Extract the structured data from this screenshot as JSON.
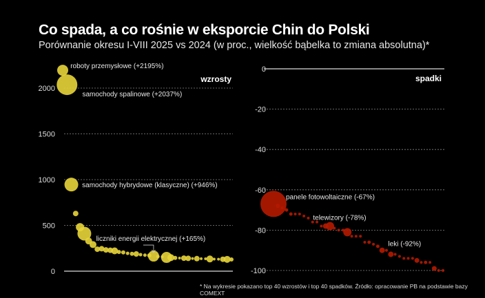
{
  "title": "Co spada, a co rośnie w eksporcie Chin do Polski",
  "subtitle": "Porównanie okresu I-VIII 2025 vs 2024 (w proc., wielkość bąbelka to zmiana absolutna)*",
  "footnote": "* Na wykresie pokazano top 40 wzrostów i top 40 spadków. Źródło: opracowanie PB na podstawie bazy COMEXT",
  "chart_data": [
    {
      "type": "scatter",
      "panel_label": "wzrosty",
      "color": "#e8d53a",
      "ylim": [
        0,
        2200
      ],
      "yticks": [
        "0",
        "500",
        "1000",
        "1500",
        "2000"
      ],
      "ytick_values": [
        0,
        500,
        1000,
        1500,
        2000
      ],
      "grid": true,
      "values": [
        2195,
        2037,
        946,
        630,
        480,
        410,
        330,
        290,
        240,
        245,
        232,
        228,
        222,
        210,
        205,
        195,
        190,
        188,
        180,
        175,
        172,
        165,
        160,
        158,
        150,
        148,
        145,
        143,
        142,
        140,
        138,
        137,
        136,
        135,
        133,
        132,
        131,
        130,
        129,
        128
      ],
      "sizes": [
        8,
        15,
        10,
        4,
        6,
        10,
        5,
        5,
        4,
        4,
        4,
        4,
        5,
        3,
        3,
        2.5,
        3,
        4,
        2.5,
        2.5,
        3,
        8,
        2.5,
        2,
        8,
        5,
        3,
        2,
        4,
        4,
        2,
        4,
        2,
        2,
        5,
        2,
        2,
        4,
        5,
        3
      ],
      "annotations": [
        {
          "index": 0,
          "text": "roboty przemysłowe (+2195%)"
        },
        {
          "index": 1,
          "text": "samochody spalinowe (+2037%)"
        },
        {
          "index": 2,
          "text": "samochody hybrydowe (klasyczne) (+946%)"
        },
        {
          "index": 21,
          "text": "liczniki energii elektrycznej (+165%)"
        }
      ]
    },
    {
      "type": "scatter",
      "panel_label": "spadki",
      "color": "#b51a00",
      "ylim": [
        -100,
        0
      ],
      "yticks": [
        "0",
        "-20",
        "-40",
        "-60",
        "-80",
        "-100"
      ],
      "ytick_values": [
        0,
        -20,
        -40,
        -60,
        -80,
        -100
      ],
      "grid": true,
      "values": [
        -67,
        -68,
        -69,
        -70,
        -72,
        -72,
        -72,
        -73,
        -74,
        -76,
        -76,
        -78,
        -78,
        -78,
        -79,
        -80,
        -80,
        -81,
        -83,
        -83,
        -83,
        -86,
        -86,
        -87,
        -88,
        -90,
        -90,
        -92,
        -92,
        -93,
        -94,
        -94,
        -94,
        -95,
        -96,
        -96,
        -96,
        -99,
        -100,
        -100
      ],
      "sizes": [
        19,
        3,
        2,
        2.5,
        2.5,
        2,
        2,
        2,
        2,
        2,
        2,
        2,
        4,
        6,
        2,
        2,
        2,
        6,
        2,
        2,
        2,
        2,
        2.5,
        2,
        2.5,
        4,
        2,
        4,
        2,
        2,
        2,
        2,
        2,
        3.5,
        2,
        2.5,
        2,
        3.5,
        2,
        2
      ],
      "annotations": [
        {
          "index": 0,
          "text": "panele fotowoltaiczne (-67%)"
        },
        {
          "index": 13,
          "text": "telewizory (-78%)"
        },
        {
          "index": 27,
          "text": "leki (-92%)"
        }
      ]
    }
  ]
}
